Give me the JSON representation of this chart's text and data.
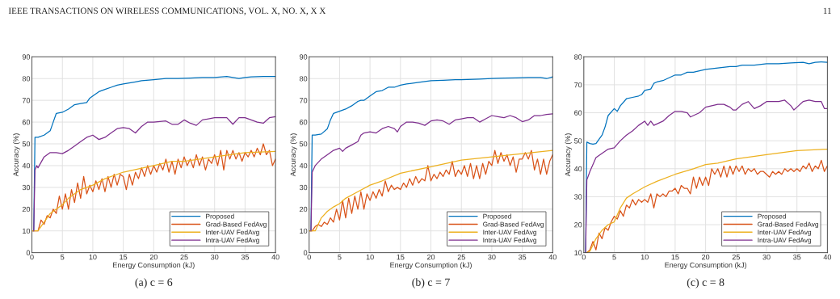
{
  "chart_data": [
    {
      "type": "line",
      "title": "(a) c = 6",
      "xlabel": "Energy Consumption (kJ)",
      "ylabel": "Accuracy (%)",
      "xlim": [
        0,
        40
      ],
      "ylim": [
        0,
        90
      ],
      "xticks": [
        0,
        5,
        10,
        15,
        20,
        25,
        30,
        35,
        40
      ],
      "yticks": [
        0,
        10,
        20,
        30,
        40,
        50,
        60,
        70,
        80,
        90
      ],
      "grid": true,
      "legend": "bottom right",
      "annotations": [
        "IEEE TRANSACTIONS ON WIRELESS COMMUNICATIONS, VOL. X, NO. X, X X",
        "11"
      ],
      "series": [
        {
          "name": "Proposed",
          "color": "#0072bd",
          "x": [
            0.3,
            0.5,
            1,
            2,
            3,
            3.5,
            4,
            5,
            6,
            7,
            8,
            9,
            9.5,
            10,
            11,
            12,
            13,
            14,
            15,
            16,
            17,
            18,
            20,
            22,
            24,
            26,
            28,
            30,
            32,
            33,
            34,
            35,
            36,
            38,
            40
          ],
          "values": [
            10,
            53,
            53,
            54,
            56,
            60,
            64,
            64.5,
            66,
            68,
            68.5,
            69,
            71,
            72,
            74,
            75,
            76,
            77,
            77.5,
            78,
            78.5,
            79,
            79.5,
            80,
            80,
            80.2,
            80.5,
            80.5,
            81,
            80.5,
            80,
            80.5,
            80.8,
            81,
            81
          ]
        },
        {
          "name": "Grad-Based FedAvg",
          "color": "#d95319",
          "x": [
            0,
            0.5,
            1,
            1.5,
            2,
            2.5,
            3,
            3.5,
            4,
            4.5,
            5,
            5.5,
            6,
            6.5,
            7,
            7.5,
            8,
            8.5,
            9,
            9.5,
            10,
            10.5,
            11,
            11.5,
            12,
            12.5,
            13,
            13.5,
            14,
            14.5,
            15,
            15.5,
            16,
            16.5,
            17,
            17.5,
            18,
            18.5,
            19,
            19.5,
            20,
            20.5,
            21,
            21.5,
            22,
            22.5,
            23,
            23.5,
            24,
            24.5,
            25,
            25.5,
            26,
            26.5,
            27,
            27.5,
            28,
            28.5,
            29,
            29.5,
            30,
            30.5,
            31,
            31.5,
            32,
            32.5,
            33,
            33.5,
            34,
            34.5,
            35,
            35.5,
            36,
            36.5,
            37,
            37.5,
            38,
            38.5,
            39,
            39.5,
            40
          ],
          "values": [
            10,
            10,
            10,
            15,
            13,
            17,
            16,
            20,
            18,
            26,
            20,
            27,
            20,
            29,
            23,
            32,
            25,
            35,
            27,
            31,
            28,
            33,
            29,
            34,
            28,
            35,
            30,
            36,
            31,
            36,
            35,
            29,
            36,
            31,
            37,
            34,
            39,
            35,
            40,
            36,
            40,
            37,
            41,
            38,
            43,
            37,
            42,
            36,
            43,
            39,
            44,
            40,
            43,
            39,
            45,
            40,
            44,
            38,
            43,
            41,
            45,
            40,
            47,
            38,
            47,
            43,
            47,
            43,
            46,
            42,
            46,
            44,
            47,
            44,
            48,
            45,
            50,
            45,
            47,
            40,
            43
          ]
        },
        {
          "name": "Inter-UAV FedAvg",
          "color": "#edb120",
          "x": [
            0,
            1,
            2,
            3,
            4,
            5,
            6,
            8,
            10,
            12,
            15,
            20,
            23,
            25,
            30,
            35,
            40
          ],
          "values": [
            10,
            10,
            14,
            18,
            20,
            22,
            25,
            29,
            31,
            34,
            37,
            40,
            42,
            42,
            44,
            46,
            46.5
          ]
        },
        {
          "name": "Intra-UAV FedAvg",
          "color": "#7e2f8e",
          "x": [
            0.3,
            0.5,
            0.8,
            1,
            2,
            3,
            4,
            5,
            6,
            7,
            8,
            9,
            10,
            11,
            12,
            13,
            14,
            15,
            16,
            17,
            18,
            19,
            20,
            22,
            23,
            24,
            25,
            26,
            27,
            28,
            30,
            32,
            33,
            34,
            35,
            36,
            37,
            38,
            39,
            40
          ],
          "values": [
            10,
            38,
            40,
            39,
            44,
            46,
            46,
            45.5,
            47,
            49,
            51,
            53,
            54,
            52,
            53,
            55,
            57,
            57.5,
            57,
            55,
            58,
            60,
            60,
            60.5,
            59,
            59,
            61,
            59.5,
            58.5,
            61,
            62,
            62,
            59,
            62,
            62,
            61,
            60,
            59.5,
            62,
            62.5
          ]
        }
      ]
    },
    {
      "type": "line",
      "title": "(b) c = 7",
      "xlabel": "Energy Consumption (kJ)",
      "ylabel": "Accuracy (%)",
      "xlim": [
        0,
        40
      ],
      "ylim": [
        0,
        90
      ],
      "xticks": [
        0,
        5,
        10,
        15,
        20,
        25,
        30,
        35,
        40
      ],
      "yticks": [
        0,
        10,
        20,
        30,
        40,
        50,
        60,
        70,
        80,
        90
      ],
      "grid": true,
      "legend": "bottom right",
      "series": [
        {
          "name": "Proposed",
          "color": "#0072bd",
          "x": [
            0.3,
            0.5,
            1,
            2,
            3,
            3.5,
            4,
            5,
            6,
            7,
            8,
            8.5,
            9,
            9.5,
            10,
            11,
            12,
            13,
            14,
            15,
            16,
            18,
            20,
            22,
            24,
            25,
            28,
            30,
            32,
            34,
            36,
            38,
            39,
            40
          ],
          "values": [
            10,
            54,
            54,
            54.5,
            57,
            61,
            64,
            65,
            66,
            67.5,
            69.5,
            70,
            70,
            71,
            72,
            74,
            74.5,
            76,
            76,
            77,
            77.5,
            78.3,
            79,
            79.2,
            79.5,
            79.5,
            79.8,
            80,
            80.2,
            80.3,
            80.5,
            80.5,
            80,
            80.8
          ]
        },
        {
          "name": "Grad-Based FedAvg",
          "color": "#d95319",
          "x": [
            0,
            0.5,
            1,
            1.5,
            2,
            2.5,
            3,
            3.5,
            4,
            4.5,
            5,
            5.5,
            6,
            6.5,
            7,
            7.5,
            8,
            8.5,
            9,
            9.5,
            10,
            10.5,
            11,
            11.5,
            12,
            12.5,
            13,
            13.5,
            14,
            14.5,
            15,
            15.5,
            16,
            16.5,
            17,
            17.5,
            18,
            18.5,
            19,
            19.5,
            20,
            20.5,
            21,
            21.5,
            22,
            22.5,
            23,
            23.5,
            24,
            24.5,
            25,
            25.5,
            26,
            26.5,
            27,
            27.5,
            28,
            28.5,
            29,
            29.5,
            30,
            30.5,
            31,
            31.5,
            32,
            32.5,
            33,
            33.5,
            34,
            34.5,
            35,
            35.5,
            36,
            36.5,
            37,
            37.5,
            38,
            38.5,
            39,
            39.5,
            40
          ],
          "values": [
            10,
            10,
            12,
            13,
            12,
            14,
            13,
            16,
            14,
            20,
            15,
            24,
            16,
            25,
            18,
            26,
            20,
            28,
            20,
            27,
            24,
            28,
            25,
            29,
            26,
            33,
            28,
            31,
            29,
            30,
            29,
            32,
            30,
            34,
            31,
            35,
            32,
            34,
            33,
            40,
            33,
            36,
            34,
            37,
            35,
            38,
            36,
            42,
            35,
            38,
            36,
            40,
            35,
            41,
            34,
            40,
            34,
            41,
            36,
            42,
            40,
            47,
            41,
            46,
            42,
            45,
            40,
            44,
            37,
            43,
            43,
            46,
            43,
            47,
            38,
            43,
            36,
            43,
            36,
            42,
            45
          ]
        },
        {
          "name": "Inter-UAV FedAvg",
          "color": "#edb120",
          "x": [
            0,
            1,
            2,
            3,
            4,
            5,
            6,
            8,
            10,
            12,
            15,
            20,
            25,
            30,
            35,
            40
          ],
          "values": [
            10,
            10,
            16,
            19,
            21,
            22.5,
            25,
            28,
            31,
            33,
            36.5,
            39.5,
            42.5,
            44,
            45.5,
            47
          ]
        },
        {
          "name": "Intra-UAV FedAvg",
          "color": "#7e2f8e",
          "x": [
            0.3,
            0.5,
            1,
            2,
            3,
            4,
            5,
            5.5,
            6,
            7,
            8,
            8.5,
            9,
            10,
            11,
            12,
            13,
            14,
            14.5,
            15,
            16,
            17,
            18,
            19,
            20,
            21,
            22,
            23,
            24,
            25,
            26,
            27,
            28,
            29,
            30,
            31,
            32,
            33,
            34,
            35,
            36,
            37,
            38,
            39,
            40
          ],
          "values": [
            10,
            37,
            40,
            43,
            45,
            47,
            48,
            46.5,
            48,
            49.5,
            51,
            54,
            55,
            55.5,
            55,
            57,
            58,
            57,
            55.5,
            58,
            60,
            60,
            59.5,
            58.5,
            60.5,
            61,
            60.5,
            59,
            61,
            61.5,
            62,
            62,
            60,
            61.5,
            63,
            62.5,
            62,
            63,
            62,
            60.2,
            61,
            63,
            63,
            63.5,
            63.8
          ]
        }
      ]
    },
    {
      "type": "line",
      "title": "(c) c = 8",
      "xlabel": "Energy Consumption (kJ)",
      "ylabel": "Accuracy (%)",
      "xlim": [
        0,
        40
      ],
      "ylim": [
        10,
        80
      ],
      "xticks": [
        0,
        5,
        10,
        15,
        20,
        25,
        30,
        35,
        40
      ],
      "yticks": [
        10,
        20,
        30,
        40,
        50,
        60,
        70,
        80
      ],
      "grid": true,
      "legend": "bottom right",
      "series": [
        {
          "name": "Proposed",
          "color": "#0072bd",
          "x": [
            0.3,
            0.5,
            1,
            1.5,
            2,
            2.5,
            3,
            3.5,
            4,
            5,
            5.5,
            6,
            7,
            8,
            9,
            9.5,
            10,
            11,
            11.5,
            12,
            13,
            14,
            15,
            16,
            17,
            18,
            20,
            22,
            24,
            25,
            26,
            28,
            30,
            32,
            34,
            36,
            37,
            38,
            39,
            40
          ],
          "values": [
            10,
            49.5,
            49,
            48.8,
            49,
            50.5,
            52,
            55,
            59,
            61.5,
            60.5,
            62.5,
            65,
            65.5,
            66,
            66.5,
            68,
            68.5,
            70.5,
            71,
            71.5,
            72.5,
            73.5,
            73.5,
            74.5,
            74.5,
            75.5,
            76,
            76.5,
            76.5,
            77,
            77,
            77.5,
            77.5,
            77.8,
            78,
            77.5,
            78,
            78.2,
            78
          ]
        },
        {
          "name": "Grad-Based FedAvg",
          "color": "#d95319",
          "x": [
            0.5,
            1,
            1.5,
            2,
            2.5,
            3,
            3.5,
            4,
            4.5,
            5,
            5.5,
            6,
            6.5,
            7,
            7.5,
            8,
            8.5,
            9,
            9.5,
            10,
            10.5,
            11,
            11.5,
            12,
            12.5,
            13,
            13.5,
            14,
            14.5,
            15,
            15.5,
            16,
            16.5,
            17,
            17.5,
            18,
            18.5,
            19,
            19.5,
            20,
            20.5,
            21,
            21.5,
            22,
            22.5,
            23,
            23.5,
            24,
            24.5,
            25,
            25.5,
            26,
            26.5,
            27,
            27.5,
            28,
            28.5,
            29,
            29.5,
            30,
            30.5,
            31,
            31.5,
            32,
            32.5,
            33,
            33.5,
            34,
            34.5,
            35,
            35.5,
            36,
            36.5,
            37,
            37.5,
            38,
            38.5,
            39,
            39.5,
            40
          ],
          "values": [
            10,
            11,
            14,
            11,
            17,
            15,
            19,
            18,
            21,
            23,
            22,
            25,
            23,
            27,
            26,
            29,
            27,
            29,
            28,
            29,
            28,
            31,
            26,
            31,
            30,
            31,
            30,
            32,
            32,
            33,
            31,
            34,
            33,
            33,
            31,
            37,
            33,
            37,
            34,
            37,
            34,
            40,
            38,
            40,
            37,
            41,
            37,
            41,
            38,
            41,
            39,
            41,
            38,
            40,
            39,
            40,
            38,
            39,
            39,
            38,
            37,
            39,
            38,
            39,
            38,
            40,
            39,
            40,
            39,
            40,
            39,
            41,
            40,
            42,
            39,
            41,
            40,
            43,
            39,
            41
          ]
        },
        {
          "name": "Inter-UAV FedAvg",
          "color": "#edb120",
          "x": [
            0.5,
            1,
            2,
            3,
            4,
            5,
            6,
            7,
            8,
            10,
            12,
            15,
            18,
            20,
            22,
            25,
            30,
            35,
            40
          ],
          "values": [
            10,
            10.5,
            15,
            18,
            20,
            21,
            26,
            29.5,
            31,
            33.5,
            35.5,
            38,
            40,
            41.5,
            42,
            43.5,
            45,
            46.5,
            47
          ]
        },
        {
          "name": "Intra-UAV FedAvg",
          "color": "#7e2f8e",
          "x": [
            0.3,
            0.5,
            1,
            2,
            3,
            4,
            5,
            6,
            7,
            8,
            9,
            10,
            10.5,
            11,
            11.5,
            12,
            13,
            14,
            15,
            16,
            17,
            17.5,
            18,
            19,
            20,
            21,
            22,
            23,
            24,
            24.5,
            25,
            26,
            27,
            28,
            29,
            30,
            31,
            32,
            33,
            34,
            34.5,
            35,
            36,
            37,
            38,
            39,
            39.5,
            40
          ],
          "values": [
            10,
            36,
            39,
            44,
            45.5,
            47,
            47.5,
            50,
            52,
            53.5,
            55.5,
            57,
            55.5,
            57,
            55.5,
            56,
            57,
            59,
            60.5,
            60.5,
            60,
            58.5,
            59,
            60,
            62,
            62.5,
            63,
            63,
            62,
            61,
            61,
            63,
            64,
            61.5,
            62.5,
            64,
            64,
            64,
            64.5,
            62.5,
            61,
            62,
            64,
            64.5,
            64,
            64,
            61.5,
            61.5
          ]
        }
      ]
    }
  ]
}
